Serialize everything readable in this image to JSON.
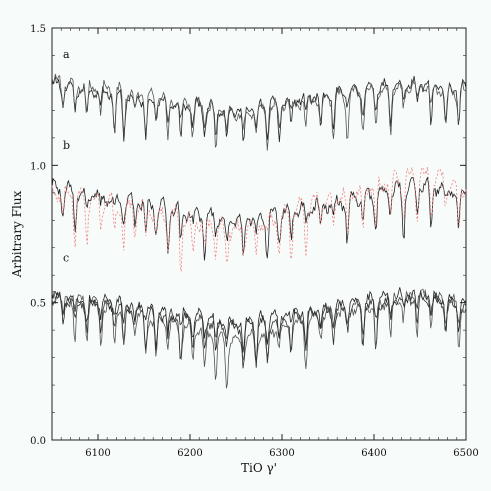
{
  "chart_data": {
    "type": "line",
    "title": "",
    "xlabel": "TiO γ'",
    "ylabel": "Arbitrary Flux",
    "xlim": [
      6050,
      6500
    ],
    "ylim": [
      0.0,
      1.5
    ],
    "xticks": [
      6100,
      6200,
      6300,
      6400,
      6500
    ],
    "yticks": [
      0.0,
      0.5,
      1.0,
      1.5
    ],
    "ytick_labels": [
      "0.0",
      "0.5",
      "1.0",
      "1.5"
    ],
    "grid": false,
    "panel_labels": [
      {
        "text": "a",
        "x": 6062,
        "y": 1.39
      },
      {
        "text": "b",
        "x": 6062,
        "y": 1.06
      },
      {
        "text": "c",
        "x": 6062,
        "y": 0.65
      }
    ],
    "series": [
      {
        "id": "a1",
        "color": "#222222",
        "dash": "",
        "base": 1.28,
        "amp": 0.03,
        "trend": [
          [
            6050,
            1.3
          ],
          [
            6150,
            1.24
          ],
          [
            6250,
            1.2
          ],
          [
            6350,
            1.26
          ],
          [
            6450,
            1.3
          ],
          [
            6500,
            1.28
          ]
        ],
        "seed": 11
      },
      {
        "id": "a2",
        "color": "#555555",
        "dash": "",
        "base": 1.28,
        "amp": 0.03,
        "trend": [
          [
            6050,
            1.31
          ],
          [
            6150,
            1.26
          ],
          [
            6250,
            1.19
          ],
          [
            6350,
            1.25
          ],
          [
            6450,
            1.29
          ],
          [
            6500,
            1.27
          ]
        ],
        "seed": 23
      },
      {
        "id": "b1",
        "color": "#222222",
        "dash": "",
        "base": 0.88,
        "amp": 0.035,
        "trend": [
          [
            6050,
            0.92
          ],
          [
            6150,
            0.86
          ],
          [
            6250,
            0.8
          ],
          [
            6350,
            0.86
          ],
          [
            6450,
            0.93
          ],
          [
            6500,
            0.9
          ]
        ],
        "seed": 37
      },
      {
        "id": "b2",
        "color": "#f08080",
        "dash": "2,2",
        "base": 0.88,
        "amp": 0.04,
        "trend": [
          [
            6050,
            0.91
          ],
          [
            6150,
            0.84
          ],
          [
            6250,
            0.76
          ],
          [
            6350,
            0.88
          ],
          [
            6450,
            0.97
          ],
          [
            6500,
            0.92
          ]
        ],
        "seed": 51
      },
      {
        "id": "c1",
        "color": "#222222",
        "dash": "",
        "base": 0.5,
        "amp": 0.03,
        "trend": [
          [
            6050,
            0.53
          ],
          [
            6150,
            0.48
          ],
          [
            6250,
            0.43
          ],
          [
            6350,
            0.48
          ],
          [
            6450,
            0.54
          ],
          [
            6500,
            0.5
          ]
        ],
        "seed": 67
      },
      {
        "id": "c2",
        "color": "#555555",
        "dash": "",
        "base": 0.5,
        "amp": 0.03,
        "trend": [
          [
            6050,
            0.54
          ],
          [
            6150,
            0.45
          ],
          [
            6250,
            0.36
          ],
          [
            6350,
            0.46
          ],
          [
            6450,
            0.53
          ],
          [
            6500,
            0.49
          ]
        ],
        "seed": 83
      },
      {
        "id": "c3",
        "color": "#333333",
        "dash": "",
        "base": 0.5,
        "amp": 0.03,
        "trend": [
          [
            6050,
            0.52
          ],
          [
            6150,
            0.47
          ],
          [
            6250,
            0.41
          ],
          [
            6350,
            0.47
          ],
          [
            6450,
            0.52
          ],
          [
            6500,
            0.48
          ]
        ],
        "seed": 97
      }
    ]
  }
}
